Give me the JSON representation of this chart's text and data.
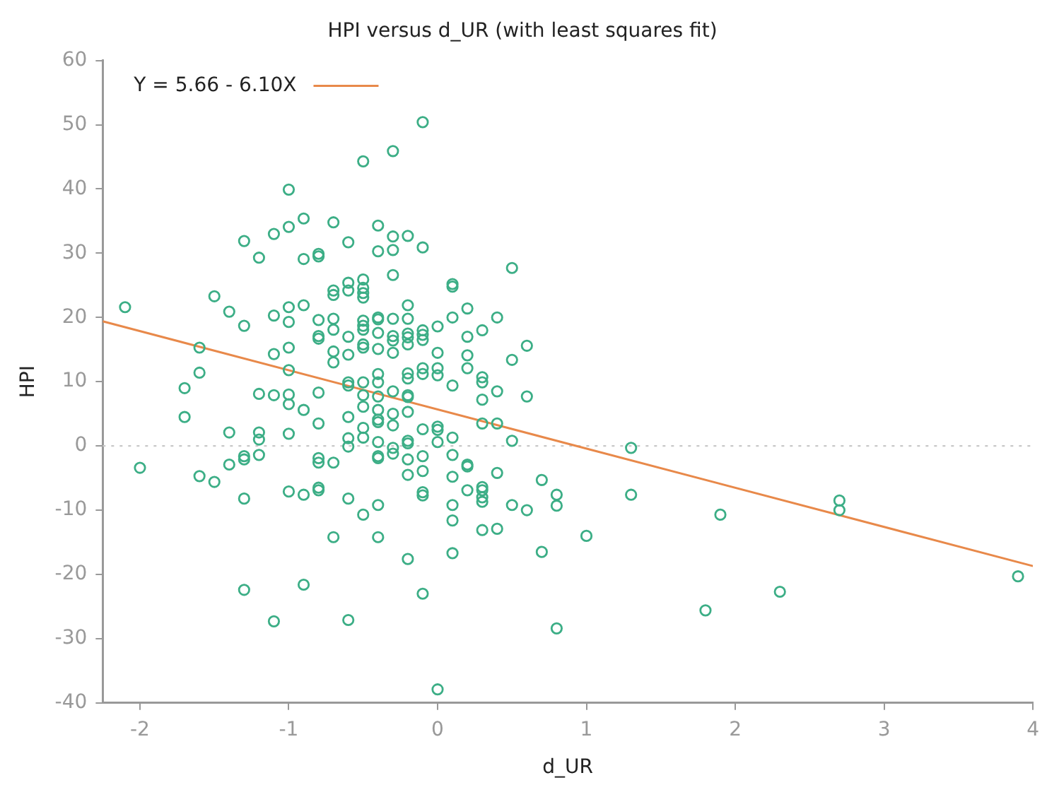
{
  "chart_data": {
    "type": "scatter",
    "title": "HPI versus d_UR (with least squares fit)",
    "xlabel": "d_UR",
    "ylabel": "HPI",
    "xlim": [
      -2.25,
      4
    ],
    "xticks": [
      -2,
      -1,
      0,
      1,
      2,
      3,
      4
    ],
    "ylim": [
      -40,
      60
    ],
    "yticks": [
      -40,
      -30,
      -20,
      -10,
      0,
      10,
      20,
      30,
      40,
      50,
      60
    ],
    "grid": false,
    "legend": "top left",
    "ref_lines": [
      {
        "axis": "y",
        "value": 0,
        "color": "#c8c8c8",
        "line_style": "dotted"
      }
    ],
    "series": [
      {
        "marker": "circle",
        "color": "#3cae86",
        "x": [
          -2.1,
          -2.0,
          -1.7,
          -1.7,
          -1.6,
          -1.6,
          -1.6,
          -1.5,
          -1.5,
          -1.4,
          -1.4,
          -1.4,
          -1.3,
          -1.3,
          -1.3,
          -1.3,
          -1.3,
          -1.3,
          -1.2,
          -1.2,
          -1.2,
          -1.2,
          -1.2,
          -1.1,
          -1.1,
          -1.1,
          -1.1,
          -1.1,
          -1.0,
          -1.0,
          -1.0,
          -1.0,
          -1.0,
          -1.0,
          -1.0,
          -1.0,
          -1.0,
          -1.0,
          -0.9,
          -0.9,
          -0.9,
          -0.9,
          -0.9,
          -0.9,
          -0.8,
          -0.8,
          -0.8,
          -0.8,
          -0.8,
          -0.8,
          -0.8,
          -0.8,
          -0.8,
          -0.8,
          -0.8,
          -0.7,
          -0.7,
          -0.7,
          -0.7,
          -0.7,
          -0.7,
          -0.7,
          -0.7,
          -0.7,
          -0.6,
          -0.6,
          -0.6,
          -0.6,
          -0.6,
          -0.6,
          -0.6,
          -0.6,
          -0.6,
          -0.6,
          -0.6,
          -0.6,
          -0.5,
          -0.5,
          -0.5,
          -0.5,
          -0.5,
          -0.5,
          -0.5,
          -0.5,
          -0.5,
          -0.5,
          -0.5,
          -0.5,
          -0.5,
          -0.5,
          -0.5,
          -0.5,
          -0.4,
          -0.4,
          -0.4,
          -0.4,
          -0.4,
          -0.4,
          -0.4,
          -0.4,
          -0.4,
          -0.4,
          -0.4,
          -0.4,
          -0.4,
          -0.4,
          -0.4,
          -0.4,
          -0.4,
          -0.3,
          -0.3,
          -0.3,
          -0.3,
          -0.3,
          -0.3,
          -0.3,
          -0.3,
          -0.3,
          -0.3,
          -0.3,
          -0.3,
          -0.3,
          -0.2,
          -0.2,
          -0.2,
          -0.2,
          -0.2,
          -0.2,
          -0.2,
          -0.2,
          -0.2,
          -0.2,
          -0.2,
          -0.2,
          -0.2,
          -0.2,
          -0.2,
          -0.2,
          -0.1,
          -0.1,
          -0.1,
          -0.1,
          -0.1,
          -0.1,
          -0.1,
          -0.1,
          -0.1,
          -0.1,
          -0.1,
          -0.1,
          -0.1,
          0.0,
          0.0,
          0.0,
          0.0,
          0.0,
          0.0,
          0.0,
          0.0,
          0.1,
          0.1,
          0.1,
          0.1,
          0.1,
          0.1,
          0.1,
          0.1,
          0.1,
          0.1,
          0.2,
          0.2,
          0.2,
          0.2,
          0.2,
          0.2,
          0.2,
          0.3,
          0.3,
          0.3,
          0.3,
          0.3,
          0.3,
          0.3,
          0.3,
          0.3,
          0.3,
          0.4,
          0.4,
          0.4,
          0.4,
          0.4,
          0.5,
          0.5,
          0.5,
          0.5,
          0.6,
          0.6,
          0.6,
          0.7,
          0.7,
          0.8,
          0.8,
          0.8,
          1.0,
          1.3,
          1.3,
          1.8,
          1.9,
          2.3,
          2.7,
          2.7,
          3.9
        ],
        "values": [
          21.6,
          -3.4,
          9.0,
          4.5,
          15.3,
          11.4,
          -4.7,
          23.3,
          -5.6,
          20.9,
          2.1,
          -2.9,
          31.9,
          18.7,
          -1.6,
          -2.1,
          -8.2,
          -22.4,
          29.3,
          8.1,
          2.1,
          1.0,
          -1.4,
          33.0,
          20.3,
          14.3,
          7.9,
          -27.3,
          39.9,
          34.1,
          21.6,
          19.3,
          15.3,
          11.8,
          8.0,
          6.5,
          1.9,
          -7.1,
          35.4,
          29.1,
          21.9,
          5.6,
          -7.6,
          -21.6,
          29.9,
          29.5,
          19.6,
          17.1,
          16.7,
          8.3,
          3.5,
          -1.9,
          -2.6,
          -6.5,
          -6.9,
          34.8,
          24.2,
          23.5,
          19.8,
          18.1,
          14.7,
          13.0,
          -2.6,
          -14.2,
          31.7,
          25.4,
          24.2,
          17.0,
          14.2,
          9.9,
          9.4,
          4.5,
          1.2,
          -0.1,
          -8.2,
          -27.1,
          44.3,
          25.9,
          24.6,
          23.8,
          23.1,
          19.5,
          18.7,
          18.1,
          15.8,
          15.3,
          9.9,
          7.9,
          6.1,
          2.8,
          1.3,
          -10.7,
          34.3,
          30.3,
          20.0,
          19.7,
          17.6,
          15.1,
          11.2,
          9.9,
          7.7,
          5.6,
          4.1,
          3.7,
          0.6,
          -1.6,
          -1.9,
          -9.2,
          -14.2,
          45.9,
          32.6,
          30.5,
          26.6,
          19.8,
          17.1,
          16.4,
          14.5,
          8.5,
          5.0,
          3.2,
          -0.3,
          -1.2,
          32.7,
          21.9,
          19.8,
          17.5,
          16.9,
          15.8,
          11.3,
          10.5,
          7.9,
          7.6,
          5.3,
          0.8,
          0.4,
          -2.1,
          -4.5,
          -17.6,
          50.4,
          30.9,
          18.0,
          17.3,
          16.5,
          12.1,
          11.2,
          2.6,
          -1.6,
          -3.9,
          -7.2,
          -7.7,
          -23.0,
          18.6,
          14.5,
          12.1,
          11.0,
          3.0,
          2.5,
          0.6,
          -37.9,
          25.2,
          24.8,
          20.0,
          9.4,
          1.3,
          -1.4,
          -4.8,
          -9.2,
          -11.6,
          -16.7,
          21.4,
          17.0,
          14.1,
          12.1,
          -2.9,
          -3.2,
          -6.9,
          18.0,
          10.7,
          9.9,
          7.2,
          3.5,
          -6.4,
          -6.9,
          -8.0,
          -8.7,
          -13.1,
          20.0,
          8.5,
          3.5,
          -4.2,
          -12.9,
          27.7,
          13.4,
          0.8,
          -9.2,
          15.6,
          7.7,
          -10.0,
          -5.3,
          -16.5,
          -7.6,
          -9.3,
          -28.4,
          -14.0,
          -0.3,
          -7.6,
          -25.6,
          -10.7,
          -22.7,
          -8.5,
          -10.0,
          -20.3
        ]
      },
      {
        "type": "line",
        "name": "Y = 5.66 - 6.10X",
        "color": "#e8894a",
        "marker": "none",
        "x": [
          -2.25,
          4
        ],
        "values": [
          19.4,
          -18.7
        ]
      }
    ]
  }
}
